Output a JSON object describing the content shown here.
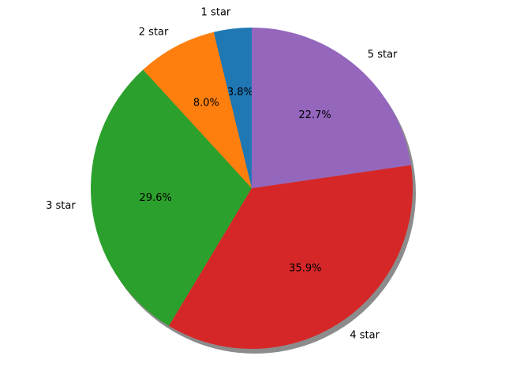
{
  "chart_data": {
    "type": "pie",
    "categories": [
      "1 star",
      "2 star",
      "3 star",
      "4 star",
      "5 star"
    ],
    "values": [
      3.8,
      8.0,
      29.6,
      35.9,
      22.7
    ],
    "value_labels": [
      "3.8%",
      "8.0%",
      "29.6%",
      "35.9%",
      "22.7%"
    ],
    "colors": [
      "#1f77b4",
      "#ff7f0e",
      "#2ca02c",
      "#d62728",
      "#9467bd"
    ],
    "start_angle": 90,
    "shadow": true
  }
}
